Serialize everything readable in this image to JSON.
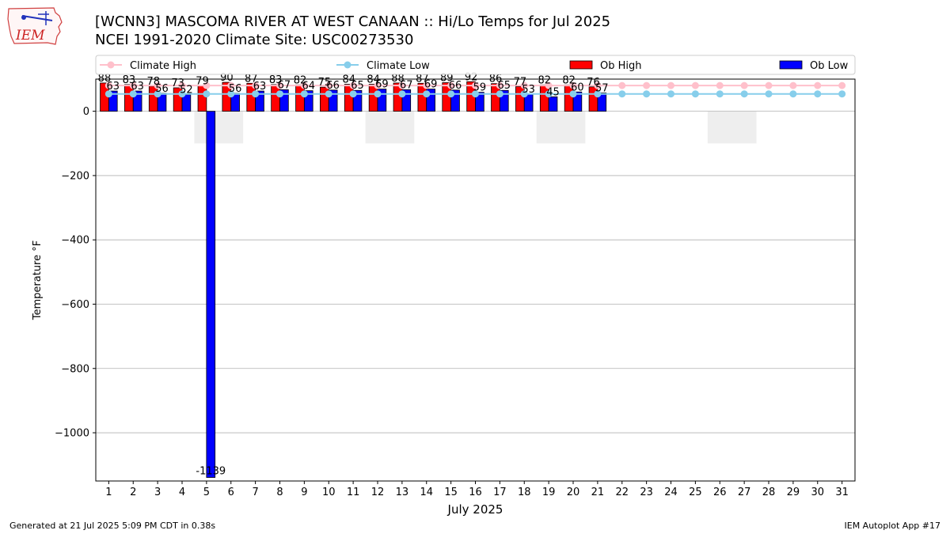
{
  "header": {
    "title_line1": "[WCNN3] MASCOMA RIVER AT WEST CANAAN :: Hi/Lo Temps for Jul 2025",
    "title_line2": "NCEI 1991-2020 Climate Site: USC00273530",
    "logo_text": "IEM"
  },
  "footer": {
    "left": "Generated at 21 Jul 2025 5:09 PM CDT in 0.38s",
    "right": "IEM Autoplot App #17"
  },
  "colors": {
    "ob_high": "#ff0000",
    "ob_low": "#0000ff",
    "climate_high": "#ffc0cb",
    "climate_low": "#87ceeb",
    "weekend_shade": "#eeeeee",
    "grid": "#b0b0b0"
  },
  "chart_data": {
    "type": "bar",
    "xlabel": "July 2025",
    "ylabel": "Temperature °F",
    "ylim": [
      -1150,
      100
    ],
    "yticks": [
      0,
      -200,
      -400,
      -600,
      -800,
      -1000
    ],
    "ytick_labels": [
      "0",
      "−200",
      "−400",
      "−600",
      "−800",
      "−1000"
    ],
    "grid": true,
    "legend_placement": "top",
    "legend": [
      "Climate High",
      "Climate Low",
      "Ob High",
      "Ob Low"
    ],
    "days": [
      1,
      2,
      3,
      4,
      5,
      6,
      7,
      8,
      9,
      10,
      11,
      12,
      13,
      14,
      15,
      16,
      17,
      18,
      19,
      20,
      21,
      22,
      23,
      24,
      25,
      26,
      27,
      28,
      29,
      30,
      31
    ],
    "shaded_day_ranges": [
      [
        5,
        6
      ],
      [
        12,
        13
      ],
      [
        19,
        20
      ],
      [
        26,
        27
      ]
    ],
    "series": [
      {
        "name": "Ob High",
        "kind": "bar",
        "values": [
          88,
          83,
          78,
          73,
          79,
          90,
          87,
          83,
          82,
          75,
          84,
          84,
          88,
          87,
          89,
          92,
          86,
          77,
          82,
          82,
          76
        ]
      },
      {
        "name": "Ob Low",
        "kind": "bar",
        "values": [
          63,
          63,
          56,
          52,
          -1139,
          56,
          63,
          67,
          64,
          66,
          65,
          69,
          67,
          69,
          66,
          59,
          65,
          53,
          45,
          60,
          57
        ]
      },
      {
        "name": "Climate High",
        "kind": "line",
        "values": [
          80,
          80,
          80,
          80,
          80,
          80,
          80,
          80,
          80,
          80,
          80,
          80,
          80,
          80,
          80,
          80,
          80,
          80,
          80,
          80,
          80,
          80,
          80,
          80,
          80,
          80,
          80,
          80,
          80,
          80,
          80
        ]
      },
      {
        "name": "Climate Low",
        "kind": "line",
        "values": [
          54,
          54,
          54,
          54,
          54,
          54,
          54,
          54,
          54,
          54,
          54,
          54,
          54,
          54,
          54,
          54,
          54,
          54,
          54,
          54,
          54,
          54,
          54,
          54,
          54,
          54,
          54,
          54,
          54,
          54,
          54
        ]
      }
    ]
  }
}
